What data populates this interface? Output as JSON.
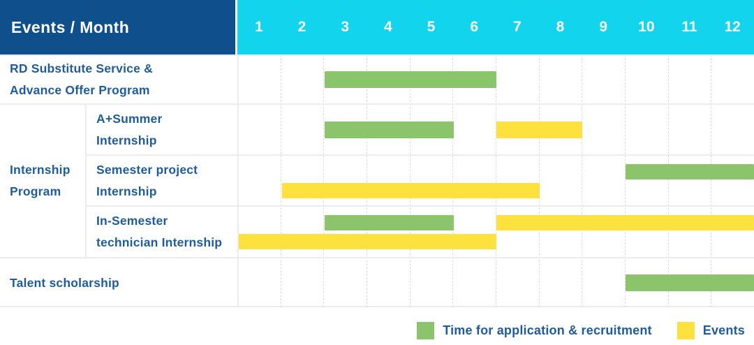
{
  "header": {
    "title": "Events / Month",
    "months": [
      "1",
      "2",
      "3",
      "4",
      "5",
      "6",
      "7",
      "8",
      "9",
      "10",
      "11",
      "12"
    ]
  },
  "labels": {
    "rd_line1": "RD Substitute Service &",
    "rd_line2": "Advance Offer Program",
    "group_line1": "Internship",
    "group_line2": "Program",
    "asummer_line1": "A+Summer",
    "asummer_line2": "Internship",
    "semproj_line1": "Semester project",
    "semproj_line2": "Internship",
    "insem_line1": "In-Semester",
    "insem_line2": "technician Internship",
    "talent": "Talent scholarship"
  },
  "legend": {
    "application": "Time for application & recruitment",
    "events": "Events"
  },
  "colors": {
    "header_navy": "#0f4f8c",
    "header_cyan": "#12d4ec",
    "bar_green": "#8bc46a",
    "bar_yellow": "#fde23f",
    "label_blue": "#1e5c9e",
    "gridline": "#dcdcdc",
    "row_border": "#ececec"
  },
  "chart_data": {
    "type": "gantt",
    "x_axis": {
      "unit": "month",
      "ticks": [
        "1",
        "2",
        "3",
        "4",
        "5",
        "6",
        "7",
        "8",
        "9",
        "10",
        "11",
        "12"
      ],
      "range": [
        1,
        12
      ]
    },
    "series": [
      {
        "key": "application",
        "name": "Time for application & recruitment",
        "color": "#8bc46a"
      },
      {
        "key": "events",
        "name": "Events",
        "color": "#fde23f"
      }
    ],
    "note": "start_month/end_month are inclusive calendar months covered by each bar; lane 0 = upper strip, lane 1 = lower strip within a row",
    "rows": [
      {
        "group": null,
        "label": "RD Substitute Service & Advance Offer Program",
        "bars": [
          {
            "series": "application",
            "start_month": 3,
            "end_month": 6,
            "lane": 0
          }
        ]
      },
      {
        "group": "Internship Program",
        "label": "A+Summer Internship",
        "bars": [
          {
            "series": "application",
            "start_month": 3,
            "end_month": 5,
            "lane": 0
          },
          {
            "series": "events",
            "start_month": 7,
            "end_month": 8,
            "lane": 0
          }
        ]
      },
      {
        "group": "Internship Program",
        "label": "Semester project Internship",
        "bars": [
          {
            "series": "application",
            "start_month": 10,
            "end_month": 12,
            "lane": 0
          },
          {
            "series": "events",
            "start_month": 2,
            "end_month": 7,
            "lane": 1
          }
        ]
      },
      {
        "group": "Internship Program",
        "label": "In-Semester technician Internship",
        "bars": [
          {
            "series": "application",
            "start_month": 3,
            "end_month": 5,
            "lane": 0
          },
          {
            "series": "events",
            "start_month": 7,
            "end_month": 12,
            "lane": 0
          },
          {
            "series": "events",
            "start_month": 1,
            "end_month": 6,
            "lane": 1
          }
        ]
      },
      {
        "group": null,
        "label": "Talent scholarship",
        "bars": [
          {
            "series": "application",
            "start_month": 10,
            "end_month": 12,
            "lane": 0
          }
        ]
      }
    ]
  }
}
